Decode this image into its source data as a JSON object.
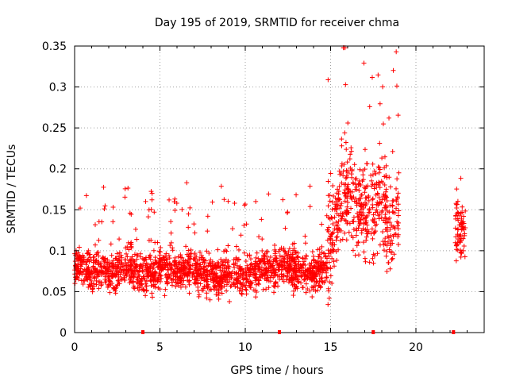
{
  "chart_data": {
    "type": "scatter",
    "title": "Day 195 of 2019, SRMTID for receiver chma",
    "xlabel": "GPS time / hours",
    "ylabel": "SRMTID / TECUs",
    "xlim": [
      0,
      24
    ],
    "ylim": [
      0,
      0.35
    ],
    "grid": true,
    "x_ticks": [
      0,
      5,
      10,
      15,
      20
    ],
    "x_tick_labels": [
      "0",
      "5",
      "10",
      "15",
      "20"
    ],
    "y_ticks": [
      0,
      0.05,
      0.1,
      0.15,
      0.2,
      0.25,
      0.3,
      0.35
    ],
    "y_tick_labels": [
      "0",
      "0.05",
      "0.1",
      "0.15",
      "0.2",
      "0.25",
      "0.3",
      "0.35"
    ],
    "marker": "+",
    "color": "#ff0000",
    "gap_markers_x": [
      4.0,
      12.0,
      17.5,
      22.2
    ],
    "series": [
      {
        "name": "SRMTID",
        "segments": [
          {
            "x_start": 0.0,
            "x_end": 14.8,
            "base": [
              0.085,
              0.08,
              0.075,
              0.08,
              0.07,
              0.08,
              0.085,
              0.075,
              0.07,
              0.075,
              0.08,
              0.075,
              0.075,
              0.08,
              0.07,
              0.07,
              0.07,
              0.075,
              0.072,
              0.068,
              0.075,
              0.078,
              0.08,
              0.082,
              0.078,
              0.075,
              0.072,
              0.075,
              0.08
            ],
            "spread": 0.03
          },
          {
            "x_start": 14.8,
            "x_end": 19.0,
            "base": [
              0.09,
              0.14,
              0.17,
              0.16,
              0.15,
              0.14,
              0.17,
              0.12,
              0.15
            ],
            "spread": 0.07
          },
          {
            "x_start": 22.3,
            "x_end": 22.9,
            "base": [
              0.13,
              0.12
            ],
            "spread": 0.04
          }
        ]
      }
    ]
  }
}
